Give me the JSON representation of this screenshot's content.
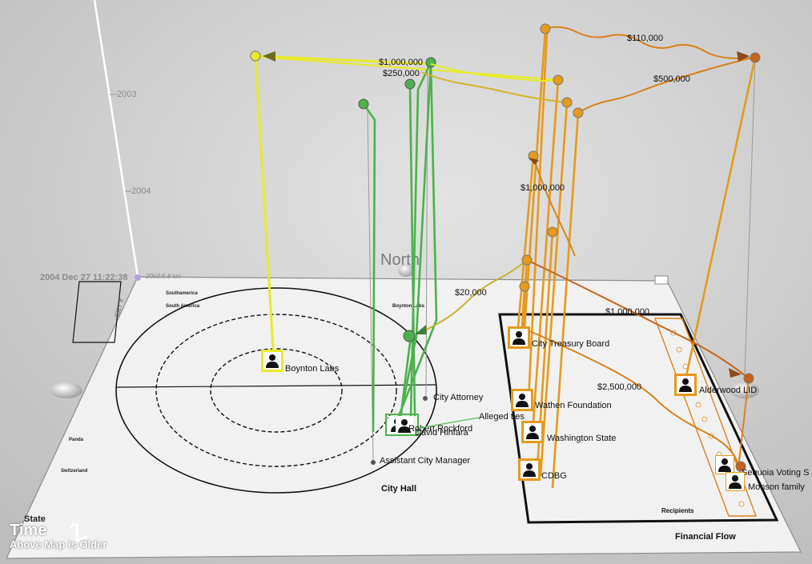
{
  "time": {
    "years": [
      "2003",
      "2004"
    ],
    "timestamp": "2004 Dec 27 11:22:38",
    "scale_reading": "2003:6.8 km",
    "side_reading": "4327 ft"
  },
  "compass": {
    "north": "North"
  },
  "map": {
    "regions": [
      "Southamerica",
      "South America",
      "Boynton Labs",
      "Panda",
      "Switzerland",
      "State"
    ],
    "city_hall": "City Hall",
    "financial_flow": "Financial Flow",
    "recipients": "Recipients"
  },
  "entities": {
    "boynton_labs": "Boynton Labs",
    "city_attorney": "City Attorney",
    "robert_rockford": "Robert Rockford",
    "david_hinfara": "David Hinfara",
    "assistant_city_manager": "Assistant City Manager",
    "city_treasury_board": "City Treasury Board",
    "wathen_foundation": "Wathen Foundation",
    "washington_state": "Washington State",
    "cdbg": "CDBG",
    "alderwood": "Alderwood LID",
    "sequoia": "Sequoia Voting S",
    "monson": "Monson family"
  },
  "alleged_ties": "Alleged ties",
  "amounts": {
    "a1": "$1,000,000",
    "a2": "$250,000",
    "a3": "$110,000",
    "a4": "$500,000",
    "a5": "$1,000,000",
    "a6": "$20,000",
    "a7": "$1,000,000",
    "a8": "$2,500,000"
  },
  "legend": {
    "time": "Time",
    "note": "Above Map is Older"
  },
  "colors": {
    "yellow": "#e6ea2a",
    "green": "#4cb14c",
    "orange": "#e59a1c",
    "dark_orange": "#c5631c"
  }
}
